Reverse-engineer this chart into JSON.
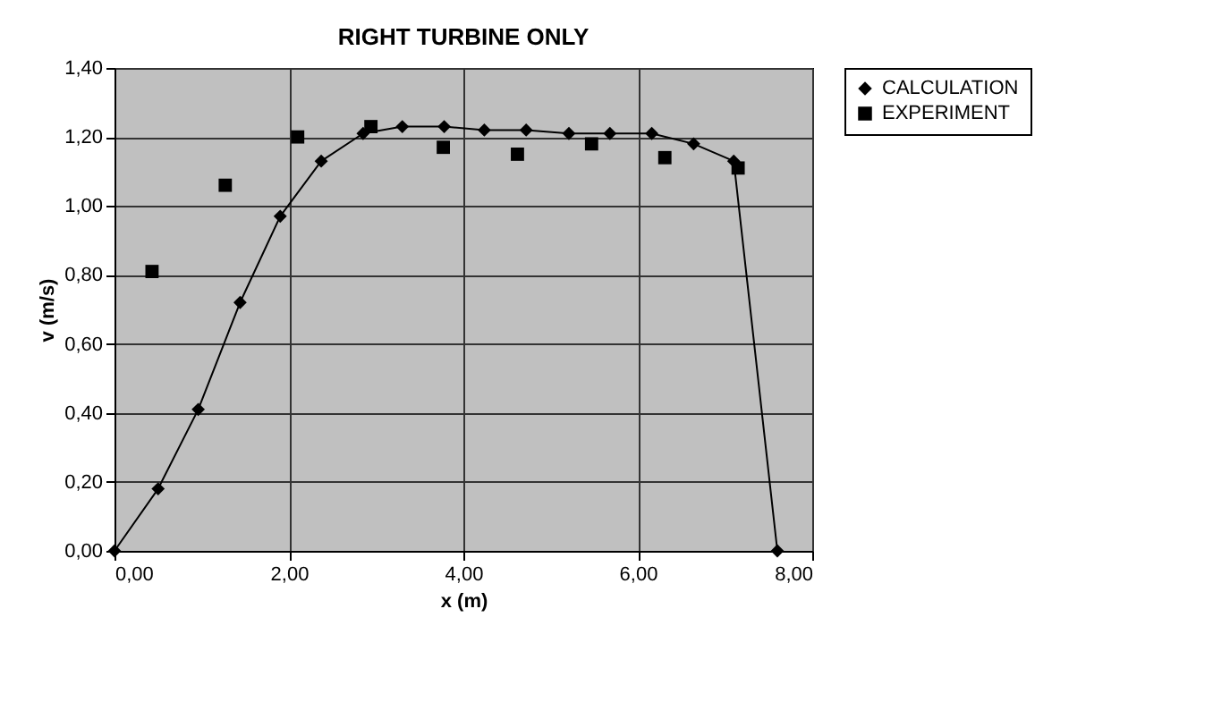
{
  "chart_data": {
    "type": "line",
    "title": "RIGHT TURBINE ONLY",
    "xlabel": "x (m)",
    "ylabel": "v (m/s)",
    "xlim": [
      0,
      8
    ],
    "xticks": [
      {
        "value": 0,
        "label": "0,00"
      },
      {
        "value": 2,
        "label": "2,00"
      },
      {
        "value": 4,
        "label": "4,00"
      },
      {
        "value": 6,
        "label": "6,00"
      },
      {
        "value": 8,
        "label": "8,00"
      }
    ],
    "ylim": [
      0,
      1.4
    ],
    "yticks": [
      {
        "value": 0,
        "label": "0,00"
      },
      {
        "value": 0.2,
        "label": "0,20"
      },
      {
        "value": 0.4,
        "label": "0,40"
      },
      {
        "value": 0.6,
        "label": "0,60"
      },
      {
        "value": 0.8,
        "label": "0,80"
      },
      {
        "value": 1.0,
        "label": "1,00"
      },
      {
        "value": 1.2,
        "label": "1,20"
      },
      {
        "value": 1.4,
        "label": "1,40"
      }
    ],
    "grid": true,
    "legend": "right",
    "series": [
      {
        "name": "CALCULATION",
        "marker": "diamond",
        "color": "#000000",
        "x": [
          0,
          0.5,
          0.96,
          1.44,
          1.9,
          2.37,
          2.85,
          3.3,
          3.78,
          4.24,
          4.72,
          5.21,
          5.68,
          6.16,
          6.64,
          7.1,
          7.6
        ],
        "values": [
          0,
          0.18,
          0.41,
          0.72,
          0.97,
          1.13,
          1.21,
          1.23,
          1.23,
          1.22,
          1.22,
          1.21,
          1.21,
          1.21,
          1.18,
          1.13,
          0
        ]
      },
      {
        "name": "EXPERIMENT",
        "type": "scatter",
        "marker": "square",
        "color": "#000000",
        "x": [
          0.43,
          1.27,
          2.1,
          2.94,
          3.77,
          4.62,
          5.47,
          6.31,
          7.15
        ],
        "values": [
          0.81,
          1.06,
          1.2,
          1.23,
          1.17,
          1.15,
          1.18,
          1.14,
          1.11
        ]
      }
    ]
  }
}
